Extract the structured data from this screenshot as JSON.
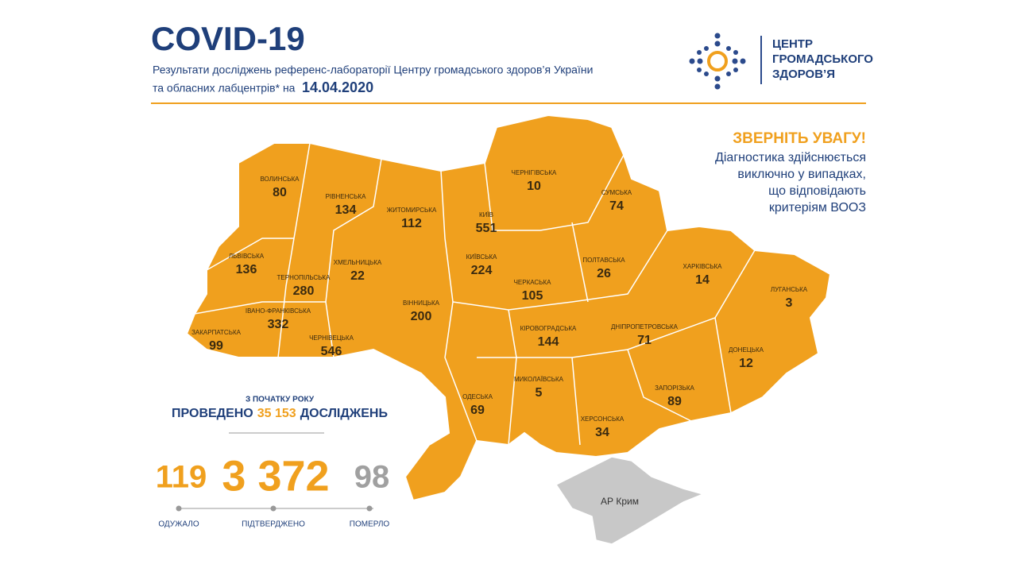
{
  "header": {
    "title": "COVID-19",
    "subtitle_line1": "Результати досліджень референс-лабораторії Центру громадського здоров’я України",
    "subtitle_line2": "та обласних лабцентрів* на",
    "date": "14.04.2020"
  },
  "logo": {
    "lines": [
      "ЦЕНТР",
      "ГРОМАДСЬКОГО",
      "ЗДОРОВ’Я"
    ]
  },
  "notice": {
    "title": "ЗВЕРНІТЬ УВАГУ!",
    "lines": [
      "Діагностика здійснюється",
      "виключно у випадках,",
      "що відповідають",
      "критеріям ВООЗ"
    ]
  },
  "tests": {
    "caption": "З ПОЧАТКУ РОКУ",
    "prefix": "ПРОВЕДЕНО",
    "count": "35 153",
    "suffix": "ДОСЛІДЖЕНЬ"
  },
  "totals": [
    {
      "value": "119",
      "label": "ОДУЖАЛО"
    },
    {
      "value": "3 372",
      "label": "ПІДТВЕРДЖЕНО"
    },
    {
      "value": "98",
      "label": "ПОМЕРЛО"
    }
  ],
  "regions": [
    {
      "name": "ВОЛИНСЬКА",
      "value": 80
    },
    {
      "name": "РІВНЕНСЬКА",
      "value": 134
    },
    {
      "name": "ЖИТОМИРСЬКА",
      "value": 112
    },
    {
      "name": "КИЇВ",
      "value": 551
    },
    {
      "name": "ЧЕРНІГІВСЬКА",
      "value": 10
    },
    {
      "name": "СУМСЬКА",
      "value": 74
    },
    {
      "name": "ЛЬВІВСЬКА",
      "value": 136
    },
    {
      "name": "ХМЕЛЬНИЦЬКА",
      "value": 22
    },
    {
      "name": "ТЕРНОПІЛЬСЬКА",
      "value": 280
    },
    {
      "name": "КИЇВСЬКА",
      "value": 224
    },
    {
      "name": "ПОЛТАВСЬКА",
      "value": 26
    },
    {
      "name": "ХАРКІВСЬКА",
      "value": 14
    },
    {
      "name": "ЧЕРКАСЬКА",
      "value": 105
    },
    {
      "name": "ЛУГАНСЬКА",
      "value": 3
    },
    {
      "name": "ВІННИЦЬКА",
      "value": 200
    },
    {
      "name": "ІВАНО-ФРАНКІВСЬКА",
      "value": 332
    },
    {
      "name": "ЗАКАРПАТСЬКА",
      "value": 99
    },
    {
      "name": "ЧЕРНІВЕЦЬКА",
      "value": 546
    },
    {
      "name": "КІРОВОГРАДСЬКА",
      "value": 144
    },
    {
      "name": "ДНІПРОПЕТРОВСЬКА",
      "value": 71
    },
    {
      "name": "ДОНЕЦЬКА",
      "value": 12
    },
    {
      "name": "МИКОЛАЇВСЬКА",
      "value": 5
    },
    {
      "name": "ОДЕСЬКА",
      "value": 69
    },
    {
      "name": "ЗАПОРІЗЬКА",
      "value": 89
    },
    {
      "name": "ХЕРСОНСЬКА",
      "value": 34
    }
  ],
  "crimea": "АР Крим"
}
